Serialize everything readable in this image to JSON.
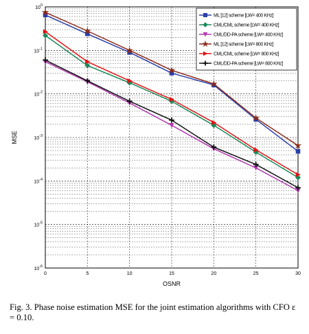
{
  "chart_data": {
    "type": "line",
    "xlabel": "OSNR",
    "ylabel": "MSE",
    "xlim": [
      0,
      30
    ],
    "ylim_log10": [
      -6,
      0
    ],
    "y_scale": "log",
    "x_ticks": [
      "0",
      "5",
      "10",
      "15",
      "20",
      "25",
      "30"
    ],
    "y_ticks": [
      {
        "mantissa": "10",
        "exp": "0"
      },
      {
        "mantissa": "10",
        "exp": "-1"
      },
      {
        "mantissa": "10",
        "exp": "-2"
      },
      {
        "mantissa": "10",
        "exp": "-3"
      },
      {
        "mantissa": "10",
        "exp": "-4"
      },
      {
        "mantissa": "10",
        "exp": "-5"
      },
      {
        "mantissa": "10",
        "exp": "-6"
      }
    ],
    "grid": true,
    "legend_position": "top-right",
    "x": [
      0,
      5,
      10,
      15,
      20,
      25,
      30
    ],
    "series": [
      {
        "name": "ML [12] scheme [LW= 400 KHz]",
        "color": "#2b3fa8",
        "marker": "square",
        "values": [
          0.65,
          0.24,
          0.09,
          0.03,
          0.016,
          0.0026,
          0.00048
        ]
      },
      {
        "name": "CML/CML scheme [LW= 400 KHz]",
        "color": "#1c8a5a",
        "marker": "diamond",
        "values": [
          0.22,
          0.045,
          0.018,
          0.0068,
          0.0019,
          0.00046,
          0.00012
        ]
      },
      {
        "name": "CML/DD-PA scheme [LW= 400 KHz]",
        "color": "#b23ab0",
        "marker": "triangle-down",
        "values": [
          0.055,
          0.019,
          0.0062,
          0.0019,
          0.00055,
          0.0002,
          6e-05
        ]
      },
      {
        "name": "ML [12] scheme [LW= 800 KHz]",
        "color": "#8b2a1a",
        "marker": "star",
        "values": [
          0.75,
          0.28,
          0.1,
          0.035,
          0.017,
          0.0028,
          0.00065
        ]
      },
      {
        "name": "CML/CML scheme [LW= 800 KHz]",
        "color": "#e01414",
        "marker": "triangle-right",
        "values": [
          0.27,
          0.055,
          0.02,
          0.0075,
          0.0022,
          0.00052,
          0.00014
        ]
      },
      {
        "name": "CML/DD-PA scheme [LW= 800 KHz]",
        "color": "#111111",
        "marker": "plus",
        "values": [
          0.06,
          0.02,
          0.0068,
          0.0025,
          0.0006,
          0.00024,
          7e-05
        ]
      }
    ]
  },
  "caption": "Fig. 3.  Phase noise estimation MSE for the joint estimation algorithms with CFO ε = 0.10."
}
